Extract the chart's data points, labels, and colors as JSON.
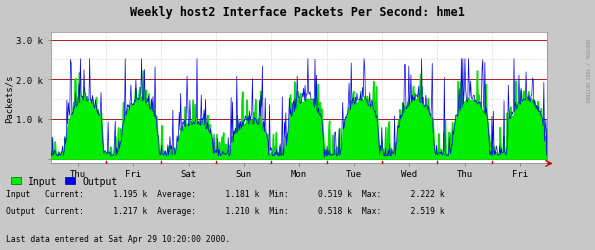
{
  "title": "Weekly host2 Interface Packets Per Second: hme1",
  "ylabel": "Packets/s",
  "ytick_labels": [
    "",
    "1.0 k",
    "2.0 k",
    "3.0 k"
  ],
  "ymax": 3200,
  "ymin": -120,
  "xtick_labels": [
    "Thu",
    "Fri",
    "Sat",
    "Sun",
    "Mon",
    "Tue",
    "Wed",
    "Thu",
    "Fri"
  ],
  "bg_color": "#c8c8c8",
  "plot_bg_color": "#ffffff",
  "grid_color_major": "#aa0000",
  "grid_color_minor": "#b0b0b0",
  "input_color": "#00cc00",
  "output_color": "#0000ee",
  "input_fill": "#00ee00",
  "legend_input": "Input",
  "legend_output": "Output",
  "last_data": "Last data entered at Sat Apr 29 10:20:00 2000.",
  "watermark": "RRDTOOL / TOBI OETIKER",
  "input_min": 519,
  "input_max": 2222,
  "input_avg": 1181,
  "output_max": 2519,
  "output_avg": 1210,
  "num_points": 700,
  "num_days": 9
}
